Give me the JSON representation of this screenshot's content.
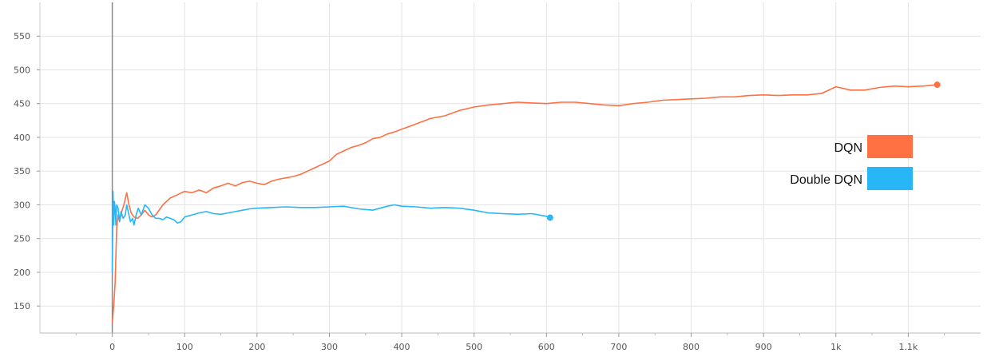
{
  "chart_data": {
    "type": "line",
    "title": "",
    "xlabel": "",
    "ylabel": "",
    "xlim": [
      -100,
      1200
    ],
    "ylim": [
      110,
      600
    ],
    "x_ticks": [
      0,
      100,
      200,
      300,
      400,
      500,
      600,
      700,
      800,
      900,
      1000,
      1100
    ],
    "x_tick_labels": [
      "0",
      "100",
      "200",
      "300",
      "400",
      "500",
      "600",
      "700",
      "800",
      "900",
      "1k",
      "1.1k"
    ],
    "y_ticks": [
      150,
      200,
      250,
      300,
      350,
      400,
      450,
      500,
      550
    ],
    "y_tick_labels": [
      "150",
      "200",
      "250",
      "300",
      "350",
      "400",
      "450",
      "500",
      "550"
    ],
    "grid": true,
    "legend_position": "right",
    "series": [
      {
        "name": "DQN",
        "color": "#ff7043",
        "x": [
          0,
          2,
          4,
          6,
          8,
          10,
          13,
          16,
          20,
          23,
          26,
          30,
          35,
          40,
          45,
          50,
          55,
          60,
          70,
          80,
          90,
          100,
          110,
          120,
          130,
          140,
          150,
          160,
          170,
          180,
          190,
          200,
          210,
          220,
          230,
          240,
          250,
          260,
          270,
          280,
          290,
          300,
          310,
          320,
          330,
          340,
          350,
          360,
          370,
          380,
          390,
          400,
          420,
          440,
          460,
          480,
          500,
          520,
          540,
          560,
          580,
          600,
          620,
          640,
          660,
          680,
          700,
          720,
          740,
          760,
          780,
          800,
          820,
          840,
          860,
          880,
          900,
          920,
          940,
          960,
          980,
          1000,
          1020,
          1040,
          1060,
          1080,
          1100,
          1120,
          1140
        ],
        "y": [
          125,
          150,
          185,
          265,
          285,
          275,
          290,
          300,
          318,
          300,
          288,
          282,
          280,
          285,
          292,
          285,
          282,
          285,
          300,
          310,
          315,
          320,
          318,
          322,
          318,
          325,
          328,
          332,
          328,
          333,
          335,
          332,
          330,
          335,
          338,
          340,
          342,
          345,
          350,
          355,
          360,
          365,
          375,
          380,
          385,
          388,
          392,
          398,
          400,
          405,
          408,
          412,
          420,
          428,
          432,
          440,
          445,
          448,
          450,
          452,
          451,
          450,
          452,
          452,
          450,
          448,
          447,
          450,
          452,
          455,
          456,
          457,
          458,
          460,
          460,
          462,
          463,
          462,
          463,
          463,
          465,
          475,
          470,
          470,
          474,
          476,
          475,
          476,
          478
        ]
      },
      {
        "name": "Double DQN",
        "color": "#29b6f6",
        "x": [
          0,
          1,
          2,
          3,
          4,
          5,
          6,
          8,
          10,
          12,
          15,
          18,
          20,
          22,
          25,
          28,
          30,
          33,
          36,
          40,
          45,
          50,
          55,
          60,
          65,
          70,
          75,
          80,
          85,
          90,
          95,
          100,
          110,
          120,
          130,
          140,
          150,
          160,
          170,
          180,
          190,
          200,
          220,
          240,
          260,
          280,
          300,
          320,
          340,
          360,
          380,
          390,
          400,
          420,
          440,
          460,
          480,
          500,
          520,
          540,
          560,
          580,
          600,
          605
        ],
        "y": [
          200,
          320,
          270,
          305,
          295,
          270,
          300,
          295,
          275,
          290,
          280,
          285,
          300,
          290,
          275,
          280,
          270,
          285,
          295,
          285,
          300,
          295,
          285,
          280,
          280,
          278,
          282,
          280,
          278,
          273,
          275,
          282,
          285,
          288,
          290,
          287,
          286,
          288,
          290,
          292,
          294,
          295,
          296,
          297,
          296,
          296,
          297,
          298,
          294,
          292,
          298,
          300,
          298,
          297,
          295,
          296,
          295,
          292,
          288,
          287,
          286,
          287,
          283,
          281
        ]
      }
    ]
  }
}
